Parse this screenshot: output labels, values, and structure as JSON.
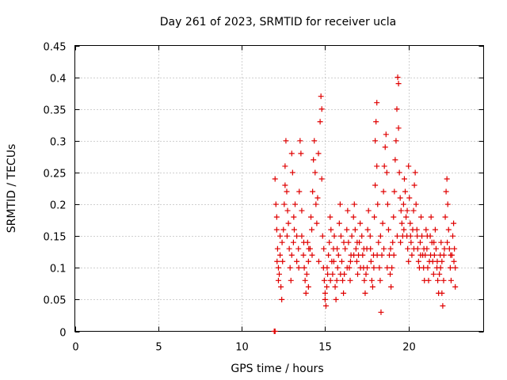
{
  "chart_data": {
    "type": "scatter",
    "title": "Day 261 of 2023, SRMTID for receiver ucla",
    "xlabel": "GPS time / hours",
    "ylabel": "SRMTID / TECUs",
    "xlim": [
      0,
      24.5
    ],
    "ylim": [
      0,
      0.45
    ],
    "xticks": [
      0,
      5,
      10,
      15,
      20
    ],
    "yticks": [
      0,
      0.05,
      0.1,
      0.15,
      0.2,
      0.25,
      0.3,
      0.35,
      0.4,
      0.45
    ],
    "xtick_labels": [
      "0",
      "5",
      "10",
      "15",
      "20"
    ],
    "ytick_labels": [
      "0",
      "0.05",
      "0.1",
      "0.15",
      "0.2",
      "0.25",
      "0.3",
      "0.35",
      "0.4",
      "0.45"
    ],
    "grid": true,
    "marker": "plus",
    "marker_color": "#e00000",
    "series": [
      {
        "name": "SRMTID",
        "points": [
          [
            11.95,
            0.0
          ],
          [
            12.0,
            0.0
          ],
          [
            12.0,
            0.24
          ],
          [
            12.05,
            0.2
          ],
          [
            12.1,
            0.18
          ],
          [
            12.1,
            0.16
          ],
          [
            12.15,
            0.13
          ],
          [
            12.2,
            0.1
          ],
          [
            12.25,
            0.09
          ],
          [
            12.2,
            0.08
          ],
          [
            12.3,
            0.15
          ],
          [
            12.3,
            0.12
          ],
          [
            12.35,
            0.07
          ],
          [
            12.4,
            0.05
          ],
          [
            12.45,
            0.11
          ],
          [
            12.5,
            0.16
          ],
          [
            12.55,
            0.2
          ],
          [
            12.6,
            0.26
          ],
          [
            12.65,
            0.3
          ],
          [
            12.6,
            0.23
          ],
          [
            12.7,
            0.22
          ],
          [
            12.75,
            0.19
          ],
          [
            12.8,
            0.17
          ],
          [
            12.85,
            0.13
          ],
          [
            12.9,
            0.1
          ],
          [
            12.95,
            0.08
          ],
          [
            13.0,
            0.12
          ],
          [
            13.0,
            0.28
          ],
          [
            13.05,
            0.25
          ],
          [
            13.1,
            0.14
          ],
          [
            13.15,
            0.16
          ],
          [
            13.2,
            0.2
          ],
          [
            13.3,
            0.15
          ],
          [
            13.3,
            0.11
          ],
          [
            13.4,
            0.13
          ],
          [
            13.45,
            0.22
          ],
          [
            13.5,
            0.3
          ],
          [
            13.55,
            0.28
          ],
          [
            13.6,
            0.19
          ],
          [
            13.6,
            0.15
          ],
          [
            13.7,
            0.12
          ],
          [
            13.75,
            0.1
          ],
          [
            13.8,
            0.08
          ],
          [
            13.85,
            0.06
          ],
          [
            13.9,
            0.09
          ],
          [
            13.95,
            0.14
          ],
          [
            14.0,
            0.11
          ],
          [
            14.0,
            0.07
          ],
          [
            14.1,
            0.13
          ],
          [
            14.15,
            0.18
          ],
          [
            14.2,
            0.16
          ],
          [
            14.25,
            0.22
          ],
          [
            14.3,
            0.27
          ],
          [
            14.35,
            0.3
          ],
          [
            14.4,
            0.25
          ],
          [
            14.45,
            0.2
          ],
          [
            14.5,
            0.17
          ],
          [
            14.55,
            0.21
          ],
          [
            14.6,
            0.28
          ],
          [
            14.7,
            0.33
          ],
          [
            14.75,
            0.37
          ],
          [
            14.8,
            0.35
          ],
          [
            14.8,
            0.24
          ],
          [
            14.85,
            0.15
          ],
          [
            14.9,
            0.1
          ],
          [
            14.95,
            0.08
          ],
          [
            15.0,
            0.06
          ],
          [
            15.0,
            0.05
          ],
          [
            15.05,
            0.04
          ],
          [
            15.1,
            0.07
          ],
          [
            15.15,
            0.09
          ],
          [
            15.2,
            0.12
          ],
          [
            15.25,
            0.14
          ],
          [
            15.3,
            0.18
          ],
          [
            15.35,
            0.16
          ],
          [
            15.4,
            0.11
          ],
          [
            15.45,
            0.09
          ],
          [
            15.5,
            0.13
          ],
          [
            15.55,
            0.15
          ],
          [
            15.6,
            0.07
          ],
          [
            15.65,
            0.05
          ],
          [
            15.7,
            0.08
          ],
          [
            15.75,
            0.1
          ],
          [
            15.8,
            0.12
          ],
          [
            15.85,
            0.17
          ],
          [
            15.9,
            0.2
          ],
          [
            15.95,
            0.15
          ],
          [
            16.0,
            0.11
          ],
          [
            16.05,
            0.08
          ],
          [
            16.1,
            0.06
          ],
          [
            16.15,
            0.09
          ],
          [
            16.2,
            0.13
          ],
          [
            16.3,
            0.16
          ],
          [
            16.35,
            0.19
          ],
          [
            16.4,
            0.14
          ],
          [
            16.45,
            0.1
          ],
          [
            16.5,
            0.08
          ],
          [
            16.55,
            0.12
          ],
          [
            16.6,
            0.15
          ],
          [
            16.7,
            0.18
          ],
          [
            16.75,
            0.2
          ],
          [
            16.8,
            0.16
          ],
          [
            16.85,
            0.13
          ],
          [
            16.9,
            0.11
          ],
          [
            16.95,
            0.09
          ],
          [
            17.0,
            0.12
          ],
          [
            17.05,
            0.14
          ],
          [
            17.1,
            0.17
          ],
          [
            17.2,
            0.15
          ],
          [
            17.25,
            0.12
          ],
          [
            17.3,
            0.1
          ],
          [
            17.35,
            0.08
          ],
          [
            17.4,
            0.06
          ],
          [
            17.45,
            0.09
          ],
          [
            17.5,
            0.13
          ],
          [
            17.55,
            0.16
          ],
          [
            17.6,
            0.19
          ],
          [
            17.7,
            0.15
          ],
          [
            17.75,
            0.11
          ],
          [
            17.8,
            0.08
          ],
          [
            17.85,
            0.07
          ],
          [
            17.9,
            0.12
          ],
          [
            17.95,
            0.18
          ],
          [
            18.0,
            0.23
          ],
          [
            18.0,
            0.3
          ],
          [
            18.05,
            0.33
          ],
          [
            18.1,
            0.36
          ],
          [
            18.1,
            0.26
          ],
          [
            18.15,
            0.2
          ],
          [
            18.2,
            0.14
          ],
          [
            18.25,
            0.1
          ],
          [
            18.3,
            0.08
          ],
          [
            18.35,
            0.03
          ],
          [
            18.4,
            0.12
          ],
          [
            18.45,
            0.17
          ],
          [
            18.5,
            0.22
          ],
          [
            18.55,
            0.26
          ],
          [
            18.6,
            0.29
          ],
          [
            18.65,
            0.31
          ],
          [
            18.7,
            0.25
          ],
          [
            18.75,
            0.2
          ],
          [
            18.8,
            0.16
          ],
          [
            18.85,
            0.12
          ],
          [
            18.9,
            0.09
          ],
          [
            18.95,
            0.07
          ],
          [
            19.0,
            0.1
          ],
          [
            19.05,
            0.14
          ],
          [
            19.1,
            0.18
          ],
          [
            19.15,
            0.22
          ],
          [
            19.2,
            0.27
          ],
          [
            19.25,
            0.3
          ],
          [
            19.3,
            0.35
          ],
          [
            19.35,
            0.4
          ],
          [
            19.4,
            0.39
          ],
          [
            19.4,
            0.32
          ],
          [
            19.45,
            0.25
          ],
          [
            19.5,
            0.21
          ],
          [
            19.55,
            0.19
          ],
          [
            19.6,
            0.17
          ],
          [
            19.65,
            0.15
          ],
          [
            19.7,
            0.2
          ],
          [
            19.75,
            0.24
          ],
          [
            19.8,
            0.22
          ],
          [
            19.85,
            0.18
          ],
          [
            19.9,
            0.15
          ],
          [
            19.95,
            0.13
          ],
          [
            20.0,
            0.11
          ],
          [
            20.0,
            0.26
          ],
          [
            20.05,
            0.21
          ],
          [
            20.1,
            0.17
          ],
          [
            20.15,
            0.14
          ],
          [
            20.2,
            0.12
          ],
          [
            20.25,
            0.16
          ],
          [
            20.3,
            0.19
          ],
          [
            20.35,
            0.23
          ],
          [
            20.4,
            0.25
          ],
          [
            20.45,
            0.2
          ],
          [
            20.5,
            0.16
          ],
          [
            20.55,
            0.13
          ],
          [
            20.6,
            0.11
          ],
          [
            20.65,
            0.1
          ],
          [
            20.7,
            0.14
          ],
          [
            20.75,
            0.18
          ],
          [
            20.8,
            0.15
          ],
          [
            20.85,
            0.12
          ],
          [
            20.9,
            0.1
          ],
          [
            20.95,
            0.08
          ],
          [
            21.0,
            0.12
          ],
          [
            21.05,
            0.16
          ],
          [
            21.1,
            0.13
          ],
          [
            21.15,
            0.1
          ],
          [
            21.2,
            0.08
          ],
          [
            21.25,
            0.11
          ],
          [
            21.3,
            0.15
          ],
          [
            21.35,
            0.18
          ],
          [
            21.4,
            0.14
          ],
          [
            21.45,
            0.11
          ],
          [
            21.5,
            0.09
          ],
          [
            21.55,
            0.12
          ],
          [
            21.6,
            0.16
          ],
          [
            21.65,
            0.13
          ],
          [
            21.7,
            0.1
          ],
          [
            21.75,
            0.08
          ],
          [
            21.8,
            0.06
          ],
          [
            21.85,
            0.09
          ],
          [
            21.9,
            0.12
          ],
          [
            21.95,
            0.14
          ],
          [
            22.0,
            0.11
          ],
          [
            22.0,
            0.06
          ],
          [
            22.05,
            0.04
          ],
          [
            22.1,
            0.08
          ],
          [
            22.15,
            0.13
          ],
          [
            22.2,
            0.18
          ],
          [
            22.25,
            0.22
          ],
          [
            22.3,
            0.24
          ],
          [
            22.35,
            0.2
          ],
          [
            22.4,
            0.16
          ],
          [
            22.45,
            0.13
          ],
          [
            22.5,
            0.1
          ],
          [
            22.55,
            0.08
          ],
          [
            22.6,
            0.12
          ],
          [
            22.65,
            0.15
          ],
          [
            22.7,
            0.17
          ],
          [
            22.75,
            0.13
          ],
          [
            22.8,
            0.1
          ],
          [
            22.8,
            0.07
          ],
          [
            12.12,
            0.11
          ],
          [
            12.42,
            0.14
          ],
          [
            12.72,
            0.15
          ],
          [
            13.12,
            0.18
          ],
          [
            13.42,
            0.1
          ],
          [
            13.72,
            0.14
          ],
          [
            14.02,
            0.13
          ],
          [
            14.22,
            0.12
          ],
          [
            14.62,
            0.11
          ],
          [
            14.92,
            0.13
          ],
          [
            15.12,
            0.1
          ],
          [
            15.32,
            0.08
          ],
          [
            15.52,
            0.11
          ],
          [
            15.72,
            0.13
          ],
          [
            15.92,
            0.09
          ],
          [
            16.12,
            0.14
          ],
          [
            16.32,
            0.1
          ],
          [
            16.52,
            0.11
          ],
          [
            16.72,
            0.12
          ],
          [
            16.92,
            0.14
          ],
          [
            17.12,
            0.1
          ],
          [
            17.32,
            0.13
          ],
          [
            17.52,
            0.1
          ],
          [
            17.72,
            0.13
          ],
          [
            17.92,
            0.1
          ],
          [
            18.12,
            0.12
          ],
          [
            18.32,
            0.15
          ],
          [
            18.52,
            0.13
          ],
          [
            18.72,
            0.1
          ],
          [
            18.92,
            0.13
          ],
          [
            19.12,
            0.12
          ],
          [
            19.32,
            0.15
          ],
          [
            19.52,
            0.14
          ],
          [
            19.72,
            0.16
          ],
          [
            19.92,
            0.19
          ],
          [
            20.12,
            0.15
          ],
          [
            20.32,
            0.13
          ],
          [
            20.52,
            0.15
          ],
          [
            20.72,
            0.12
          ],
          [
            20.92,
            0.13
          ],
          [
            21.12,
            0.15
          ],
          [
            21.32,
            0.12
          ],
          [
            21.52,
            0.14
          ],
          [
            21.72,
            0.11
          ],
          [
            21.92,
            0.1
          ],
          [
            22.12,
            0.12
          ],
          [
            22.32,
            0.14
          ],
          [
            22.52,
            0.12
          ],
          [
            22.72,
            0.11
          ]
        ]
      }
    ]
  }
}
